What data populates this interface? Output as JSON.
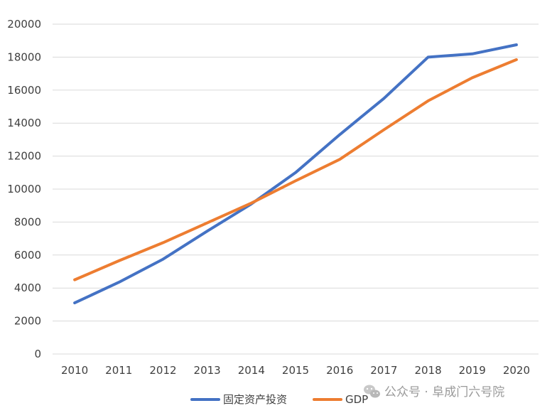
{
  "chart_data": {
    "type": "line",
    "title": "",
    "xlabel": "",
    "ylabel": "",
    "categories": [
      "2010",
      "2011",
      "2012",
      "2013",
      "2014",
      "2015",
      "2016",
      "2017",
      "2018",
      "2019",
      "2020"
    ],
    "series": [
      {
        "name": "固定资产投资",
        "color": "#4472C4",
        "values": [
          3100,
          4350,
          5750,
          7450,
          9100,
          11000,
          13300,
          15500,
          18000,
          18200,
          18750
        ]
      },
      {
        "name": "GDP",
        "color": "#ED7D31",
        "values": [
          4500,
          5650,
          6750,
          7950,
          9150,
          10500,
          11800,
          13600,
          15350,
          16750,
          17850
        ]
      }
    ],
    "y_ticks": [
      "0",
      "2000",
      "4000",
      "6000",
      "8000",
      "10000",
      "12000",
      "14000",
      "16000",
      "18000",
      "20000"
    ],
    "ylim": [
      0,
      20000
    ],
    "grid": "horizontal",
    "legend_position": "bottom"
  },
  "watermark": {
    "text": "公众号 · 阜成门六号院",
    "icon": "wechat-icon"
  }
}
